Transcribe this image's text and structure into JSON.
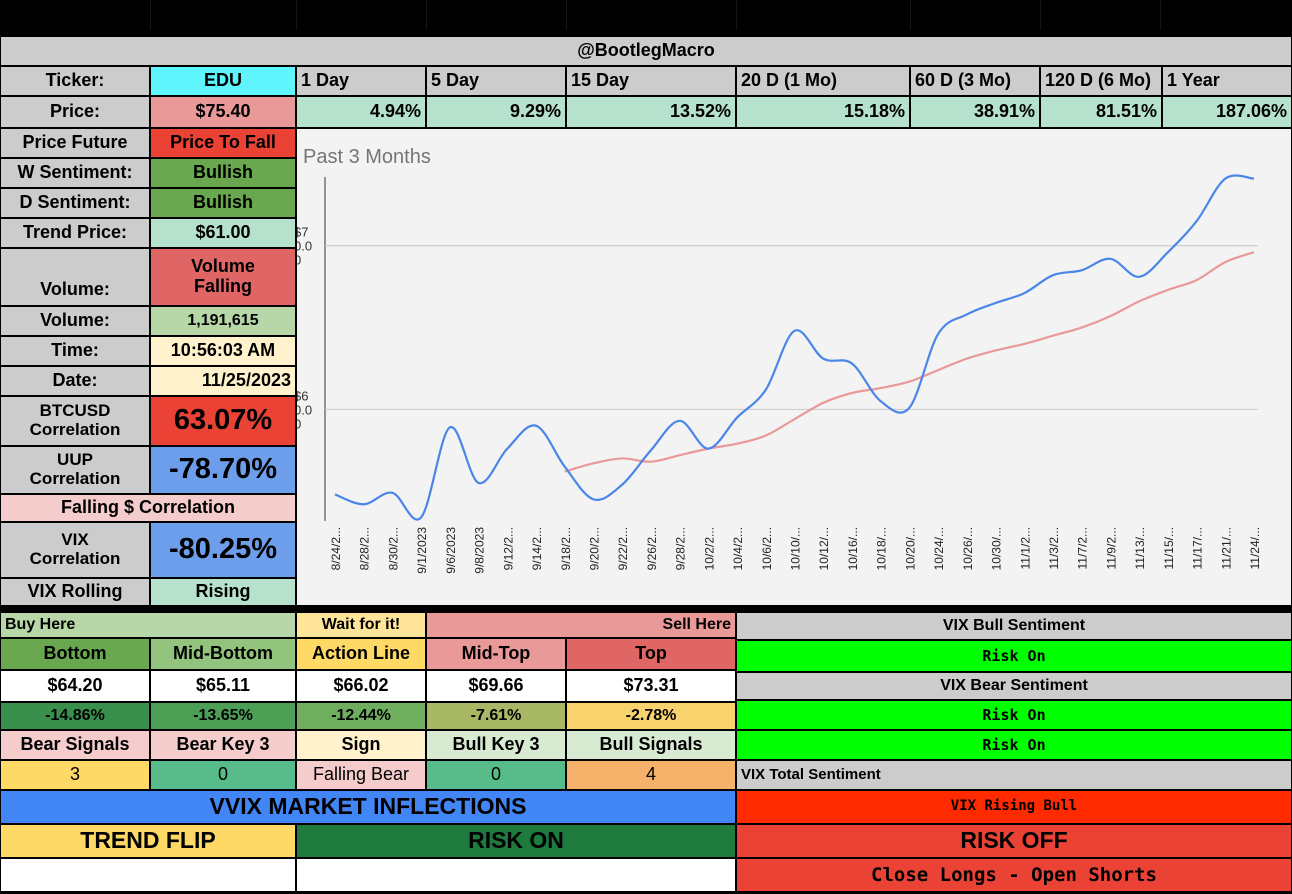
{
  "header": {
    "title": "@BootlegMacro"
  },
  "ticker_row": {
    "label": "Ticker:",
    "value": "EDU",
    "periods": [
      "1 Day",
      "5 Day",
      "15 Day",
      "20 D (1 Mo)",
      "60 D (3 Mo)",
      "120 D (6 Mo)",
      "1 Year"
    ]
  },
  "price_row": {
    "label": "Price:",
    "value": "$75.40",
    "changes": [
      "4.94%",
      "9.29%",
      "13.52%",
      "15.18%",
      "38.91%",
      "81.51%",
      "187.06%"
    ]
  },
  "left_panel": {
    "price_future": {
      "label": "Price Future",
      "value": "Price To Fall"
    },
    "w_sentiment": {
      "label": "W Sentiment:",
      "value": "Bullish"
    },
    "d_sentiment": {
      "label": "D Sentiment:",
      "value": "Bullish"
    },
    "trend_price": {
      "label": "Trend Price:",
      "value": "$61.00"
    },
    "volume_trend": {
      "label": "Volume:",
      "value_line1": "Volume",
      "value_line2": "Falling"
    },
    "volume": {
      "label": "Volume:",
      "value": "1,191,615"
    },
    "time": {
      "label": "Time:",
      "value": "10:56:03 AM"
    },
    "date": {
      "label": "Date:",
      "value": "11/25/2023"
    },
    "btcusd": {
      "label_line1": "BTCUSD",
      "label_line2": "Correlation",
      "value": "63.07%"
    },
    "uup": {
      "label_line1": "UUP",
      "label_line2": "Correlation",
      "value": "-78.70%"
    },
    "falling_corr": {
      "label": "Falling $ Correlation"
    },
    "vix": {
      "label_line1": "VIX",
      "label_line2": "Correlation",
      "value": "-80.25%"
    },
    "vix_rolling": {
      "label": "VIX Rolling",
      "value": "Rising"
    }
  },
  "chart_data": {
    "type": "line",
    "title": "Past 3 Months",
    "ylabel_ticks": [
      {
        "line1": "$7",
        "line2": "0.0",
        "line3": "0",
        "value": 70
      },
      {
        "line1": "$6",
        "line2": "0.0",
        "line3": "0",
        "value": 60
      }
    ],
    "ylim": [
      53.3,
      74.2
    ],
    "x": [
      "8/24/2...",
      "8/28/2...",
      "8/30/2...",
      "9/1/2023",
      "9/6/2023",
      "9/8/2023",
      "9/12/2...",
      "9/14/2...",
      "9/18/2...",
      "9/20/2...",
      "9/22/2...",
      "9/26/2...",
      "9/28/2...",
      "10/2/2...",
      "10/4/2...",
      "10/6/2...",
      "10/10/...",
      "10/12/...",
      "10/16/...",
      "10/18/...",
      "10/20/...",
      "10/24/...",
      "10/26/...",
      "10/30/...",
      "11/1/2...",
      "11/3/2...",
      "11/7/2...",
      "11/9/2...",
      "11/13/...",
      "11/15/...",
      "11/17/...",
      "11/21/...",
      "11/24/..."
    ],
    "grid": true,
    "series": [
      {
        "color": "#4a86e8",
        "values": [
          54.8,
          54.2,
          54.9,
          53.4,
          58.9,
          55.5,
          57.6,
          59.0,
          56.5,
          54.5,
          55.4,
          57.5,
          59.3,
          57.6,
          59.5,
          61.2,
          64.8,
          63.1,
          62.8,
          60.5,
          60.1,
          64.6,
          65.8,
          66.5,
          67.1,
          68.2,
          68.5,
          69.2,
          68.1,
          69.6,
          71.5,
          74.1,
          74.1
        ]
      },
      {
        "color": "#ea9999",
        "values": [
          null,
          null,
          null,
          null,
          null,
          null,
          null,
          null,
          56.2,
          56.7,
          57.0,
          56.8,
          57.2,
          57.6,
          57.9,
          58.4,
          59.4,
          60.4,
          61.0,
          61.3,
          61.7,
          62.4,
          63.1,
          63.6,
          64.0,
          64.5,
          65.0,
          65.7,
          66.6,
          67.3,
          67.9,
          69.0,
          69.6
        ]
      }
    ]
  },
  "levels": {
    "buy_here": "Buy Here",
    "wait": "Wait for it!",
    "sell_here": "Sell Here",
    "names": [
      "Bottom",
      "Mid-Bottom",
      "Action Line",
      "Mid-Top",
      "Top"
    ],
    "prices": [
      "$64.20",
      "$65.11",
      "$66.02",
      "$69.66",
      "$73.31"
    ],
    "pcts": [
      "-14.86%",
      "-13.65%",
      "-12.44%",
      "-7.61%",
      "-2.78%"
    ]
  },
  "signals": {
    "labels": [
      "Bear Signals",
      "Bear Key 3",
      "Sign",
      "Bull Key 3",
      "Bull Signals"
    ],
    "values": [
      "3",
      "0",
      "Falling Bear",
      "0",
      "4"
    ]
  },
  "vix_panel": {
    "bull_title": "VIX Bull Sentiment",
    "bull_value": "Risk On",
    "bear_title": "VIX Bear Sentiment",
    "bear_value1": "Risk On",
    "bear_value2": "Risk On",
    "total_title": "VIX Total Sentiment",
    "total_value": "VIX Rising Bull"
  },
  "vvix": {
    "title": "VVIX MARKET INFLECTIONS",
    "trend_flip": "TREND FLIP",
    "risk_on": "RISK ON",
    "risk_off": "RISK OFF",
    "action": "Close Longs - Open Shorts"
  },
  "colors": {
    "green": "#00ff00",
    "red": "#ea4335",
    "blue": "#4285f4",
    "cyan": "#5ef6fc"
  }
}
